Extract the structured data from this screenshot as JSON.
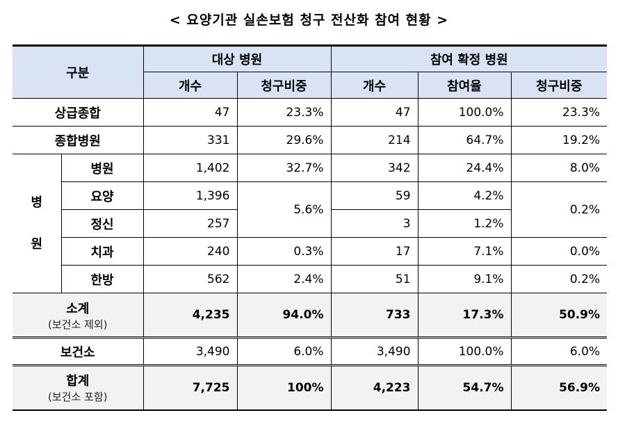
{
  "title": "< 요양기관 실손보험 청구 전산화 참여 현황 >",
  "header": {
    "category": "구분",
    "group_target": "대상 병원",
    "group_join": "참여 확정 병원",
    "count": "개수",
    "claim_share": "청구비중",
    "count2": "개수",
    "join_rate": "참여율",
    "claim_share2": "청구비중"
  },
  "rows": {
    "tertiary": {
      "label": "상급종합",
      "t_count": "47",
      "t_share": "23.3%",
      "j_count": "47",
      "j_rate": "100.0%",
      "j_share": "23.3%"
    },
    "general": {
      "label": "종합병원",
      "t_count": "331",
      "t_share": "29.6%",
      "j_count": "214",
      "j_rate": "64.7%",
      "j_share": "19.2%"
    },
    "hospital_group": {
      "label_top": "병",
      "label_bottom": "원"
    },
    "hospital": {
      "label": "병원",
      "t_count": "1,402",
      "t_share": "32.7%",
      "j_count": "342",
      "j_rate": "24.4%",
      "j_share": "8.0%"
    },
    "nursing": {
      "label": "요양",
      "t_count": "1,396",
      "j_count": "59",
      "j_rate": "4.2%"
    },
    "merged_t_share": "5.6%",
    "merged_j_share": "0.2%",
    "mental": {
      "label": "정신",
      "t_count": "257",
      "j_count": "3",
      "j_rate": "1.2%"
    },
    "dental": {
      "label": "치과",
      "t_count": "240",
      "t_share": "0.3%",
      "j_count": "17",
      "j_rate": "7.1%",
      "j_share": "0.0%"
    },
    "oriental": {
      "label": "한방",
      "t_count": "562",
      "t_share": "2.4%",
      "j_count": "51",
      "j_rate": "9.1%",
      "j_share": "0.2%"
    },
    "subtotal": {
      "label": "소계",
      "note": "(보건소 제외)",
      "t_count": "4,235",
      "t_share": "94.0%",
      "j_count": "733",
      "j_rate": "17.3%",
      "j_share": "50.9%"
    },
    "health_center": {
      "label": "보건소",
      "t_count": "3,490",
      "t_share": "6.0%",
      "j_count": "3,490",
      "j_rate": "100.0%",
      "j_share": "6.0%"
    },
    "total": {
      "label": "합계",
      "note": "(보건소 포함)",
      "t_count": "7,725",
      "t_share": "100%",
      "j_count": "4,223",
      "j_rate": "54.7%",
      "j_share": "56.9%"
    }
  }
}
